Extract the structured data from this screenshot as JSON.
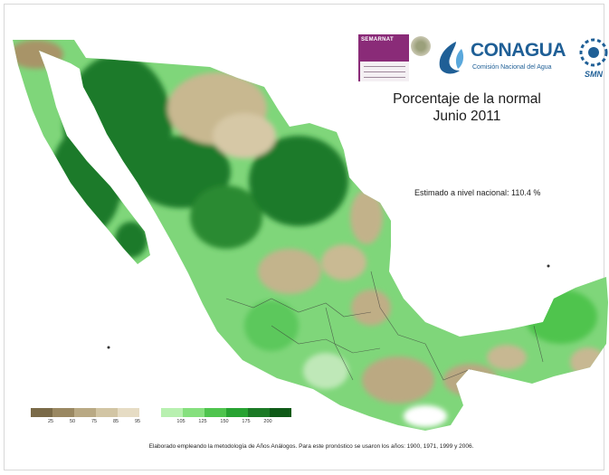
{
  "logos": {
    "semarnat_text": "SEMARNAT",
    "conagua_name": "CONAGUA",
    "conagua_subtitle": "Comisión Nacional del Agua",
    "smn_text": "SMN"
  },
  "title": {
    "line1": "Porcentaje de la normal",
    "line2": "Junio 2011"
  },
  "estimate_text": "Estimado a nivel nacional: 110.4 %",
  "legend": {
    "classes": [
      {
        "label": "25",
        "color": "#7a6a48"
      },
      {
        "label": "50",
        "color": "#9a8862"
      },
      {
        "label": "75",
        "color": "#b9a984"
      },
      {
        "label": "85",
        "color": "#d2c5a4"
      },
      {
        "label": "95",
        "color": "#e6dcc4"
      },
      {
        "label": "",
        "color": "#ffffff"
      },
      {
        "label": "105",
        "color": "#b8f0b0"
      },
      {
        "label": "125",
        "color": "#86e07e"
      },
      {
        "label": "150",
        "color": "#4fc44e"
      },
      {
        "label": "175",
        "color": "#28a332"
      },
      {
        "label": "200",
        "color": "#1c7a26"
      },
      {
        "label": "",
        "color": "#0f5a18"
      }
    ]
  },
  "footnote": "Elaborado empleando la metodología de Años Análogos. Para este pronóstico se usaron los años: 1900, 1971, 1999 y 2006."
}
